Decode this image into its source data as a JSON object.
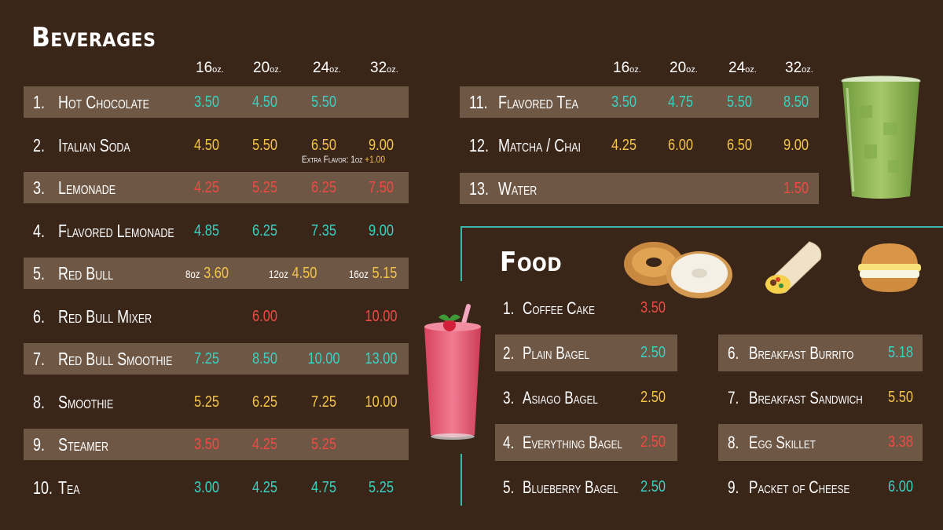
{
  "beverages": {
    "title": "Beverages",
    "sizes": [
      {
        "num": "16",
        "unit": "oz."
      },
      {
        "num": "20",
        "unit": "oz."
      },
      {
        "num": "24",
        "unit": "oz."
      },
      {
        "num": "32",
        "unit": "oz."
      }
    ],
    "items": [
      {
        "num": "1.",
        "name": "Hot Chocolate",
        "prices": [
          "3.50",
          "4.50",
          "5.50",
          ""
        ],
        "colors": [
          "teal",
          "teal",
          "teal",
          "teal"
        ]
      },
      {
        "num": "2.",
        "name": "Italian Soda",
        "prices": [
          "4.50",
          "5.50",
          "6.50",
          "9.00"
        ],
        "colors": [
          "yellow",
          "yellow",
          "yellow",
          "yellow"
        ],
        "note_label": "Extra Flavor: 1oz",
        "note_price": "+1.00"
      },
      {
        "num": "3.",
        "name": "Lemonade",
        "prices": [
          "4.25",
          "5.25",
          "6.25",
          "7.50"
        ],
        "colors": [
          "red",
          "red",
          "red",
          "red"
        ]
      },
      {
        "num": "4.",
        "name": "Flavored Lemonade",
        "prices": [
          "4.85",
          "6.25",
          "7.35",
          "9.00"
        ],
        "colors": [
          "teal",
          "teal",
          "teal",
          "teal"
        ]
      },
      {
        "num": "5.",
        "name": "Red Bull",
        "special": [
          {
            "size": "8oz",
            "price": "3.60"
          },
          {
            "size": "12oz",
            "price": "4.50"
          },
          {
            "size": "16oz",
            "price": "5.15"
          }
        ]
      },
      {
        "num": "6.",
        "name": "Red Bull Mixer",
        "prices": [
          "",
          "6.00",
          "",
          "10.00"
        ],
        "colors": [
          "red",
          "red",
          "red",
          "red"
        ]
      },
      {
        "num": "7.",
        "name": "Red Bull Smoothie",
        "prices": [
          "7.25",
          "8.50",
          "10.00",
          "13.00"
        ],
        "colors": [
          "teal",
          "teal",
          "teal",
          "teal"
        ]
      },
      {
        "num": "8.",
        "name": "Smoothie",
        "prices": [
          "5.25",
          "6.25",
          "7.25",
          "10.00"
        ],
        "colors": [
          "yellow",
          "yellow",
          "yellow",
          "yellow"
        ]
      },
      {
        "num": "9.",
        "name": "Steamer",
        "prices": [
          "3.50",
          "4.25",
          "5.25",
          ""
        ],
        "colors": [
          "red",
          "red",
          "red",
          "red"
        ]
      },
      {
        "num": "10.",
        "name": "Tea",
        "prices": [
          "3.00",
          "4.25",
          "4.75",
          "5.25"
        ],
        "colors": [
          "teal",
          "teal",
          "teal",
          "teal"
        ]
      }
    ],
    "right_items": [
      {
        "num": "11.",
        "name": "Flavored Tea",
        "prices": [
          "3.50",
          "4.75",
          "5.50",
          "8.50"
        ],
        "colors": [
          "teal",
          "teal",
          "teal",
          "teal"
        ]
      },
      {
        "num": "12.",
        "name": "Matcha / Chai",
        "prices": [
          "4.25",
          "6.00",
          "6.50",
          "9.00"
        ],
        "colors": [
          "yellow",
          "yellow",
          "yellow",
          "yellow"
        ]
      },
      {
        "num": "13.",
        "name": "Water",
        "prices": [
          "",
          "",
          "",
          "1.50"
        ],
        "colors": [
          "red",
          "red",
          "red",
          "red"
        ]
      }
    ]
  },
  "food": {
    "title": "Food",
    "left": [
      {
        "num": "1.",
        "name": "Coffee Cake",
        "price": "3.50",
        "color": "red"
      },
      {
        "num": "2.",
        "name": "Plain Bagel",
        "price": "2.50",
        "color": "teal"
      },
      {
        "num": "3.",
        "name": "Asiago Bagel",
        "price": "2.50",
        "color": "yellow"
      },
      {
        "num": "4.",
        "name": "Everything Bagel",
        "price": "2.50",
        "color": "red"
      },
      {
        "num": "5.",
        "name": "Blueberry Bagel",
        "price": "2.50",
        "color": "teal"
      }
    ],
    "right": [
      {
        "num": "6.",
        "name": "Breakfast Burrito",
        "price": "5.18",
        "color": "teal"
      },
      {
        "num": "7.",
        "name": "Breakfast Sandwich",
        "price": "5.50",
        "color": "yellow"
      },
      {
        "num": "8.",
        "name": "Egg Skillet",
        "price": "3.38",
        "color": "red"
      },
      {
        "num": "9.",
        "name": "Packet of Cheese",
        "price": "6.00",
        "color": "teal"
      }
    ]
  },
  "colors": {
    "background": "#3a2519",
    "band": "#6e5744",
    "teal": "#3ad1c2",
    "yellow": "#f3c549",
    "red": "#ee4b45",
    "frame": "#3ab8ae"
  },
  "icons": [
    "matcha-drink-icon",
    "smoothie-drink-icon",
    "bagels-icon",
    "burrito-icon",
    "breakfast-sandwich-icon"
  ]
}
